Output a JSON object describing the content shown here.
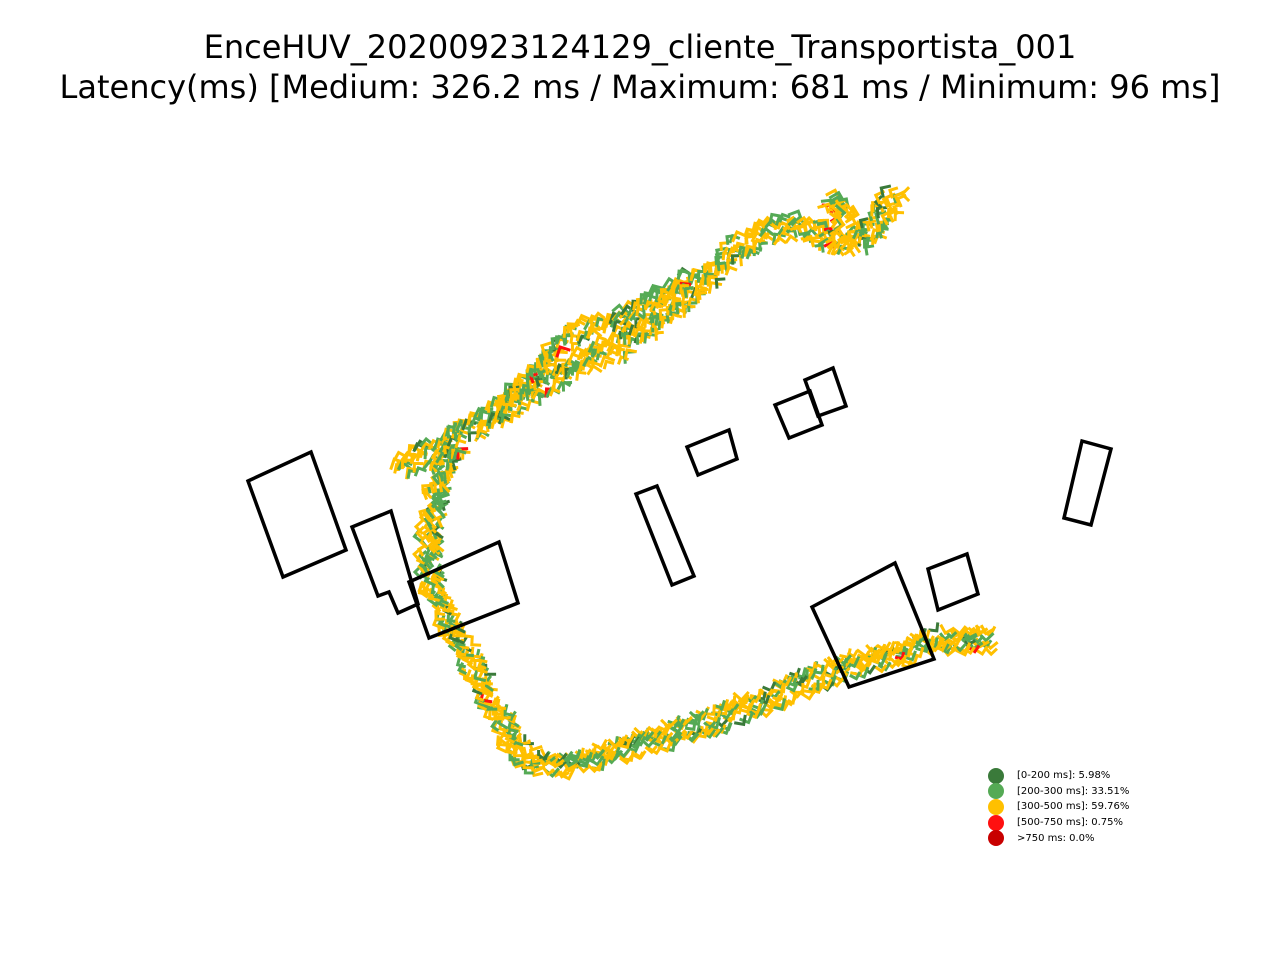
{
  "title": {
    "line1": "EnceHUV_20200923124129_cliente_Transportista_001",
    "line2": "Latency(ms) [Medium: 326.2 ms / Maximum: 681 ms / Minimum: 96 ms]"
  },
  "colors": {
    "dark_green": "#3a7a3a",
    "green": "#55aa55",
    "yellow": "#ffc000",
    "red": "#ff1010",
    "dark_red": "#c80000",
    "building_outline": "#000000"
  },
  "legend": [
    {
      "label": "[0-200 ms]: 5.98%",
      "color": "#3a7a3a",
      "share": 5.98
    },
    {
      "label": "[200-300 ms]: 33.51%",
      "color": "#55aa55",
      "share": 33.51
    },
    {
      "label": "[300-500 ms]: 59.76%",
      "color": "#ffc000",
      "share": 59.76
    },
    {
      "label": "[500-750 ms]: 0.75%",
      "color": "#ff1010",
      "share": 0.75
    },
    {
      "label": ">750 ms: 0.0%",
      "color": "#c80000",
      "share": 0.0
    }
  ]
}
